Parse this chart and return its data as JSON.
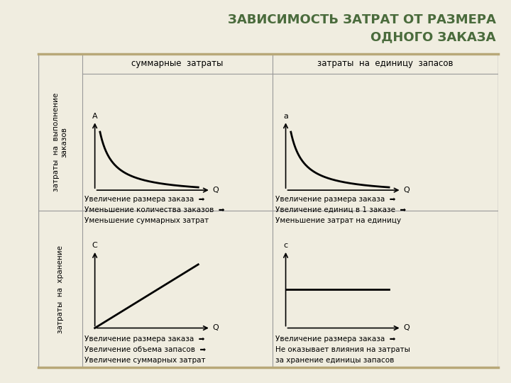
{
  "title_line1": "ЗАВИСИМОСТЬ ЗАТРАТ ОТ РАЗМЕРА",
  "title_line2": "ОДНОГО ЗАКАЗА",
  "title_color": "#4a6b3c",
  "title_fontsize": 13,
  "col_headers": [
    "суммарные  затраты",
    "затраты  на  единицу  запасов"
  ],
  "row_labels": [
    "затраты  на  выполнение\nзаказов",
    "затраты  на  хранение"
  ],
  "row_label_fontsize": 7.5,
  "col_header_fontsize": 8.5,
  "texts": {
    "top_left": [
      "Увеличение размера заказа",
      "Уменьшение количества заказов",
      "Уменьшение суммарных затрат"
    ],
    "top_right": [
      "Увеличение размера заказа",
      "Увеличение единиц в 1 заказе",
      "Уменьшение затрат на единицу"
    ],
    "bot_left": [
      "Увеличение размера заказа",
      "Увеличение объема запасов",
      "Увеличение суммарных затрат"
    ],
    "bot_right": [
      "Увеличение размера заказа",
      "Не оказывает влияния на затраты",
      "за хранение единицы запасов"
    ]
  },
  "text_has_arrow": {
    "top_left": [
      true,
      true,
      false
    ],
    "top_right": [
      true,
      true,
      false
    ],
    "bot_left": [
      true,
      true,
      false
    ],
    "bot_right": [
      true,
      false,
      false
    ]
  },
  "axis_labels": {
    "top_left_y": "A",
    "top_left_x": "Q",
    "top_right_y": "a",
    "top_right_x": "Q",
    "bot_left_y": "C",
    "bot_left_x": "Q",
    "bot_right_y": "c",
    "bot_right_x": "Q"
  },
  "border_color": "#b8a878",
  "grid_color": "#999999",
  "text_fontsize": 7.5,
  "background_color": "#f0ede0"
}
